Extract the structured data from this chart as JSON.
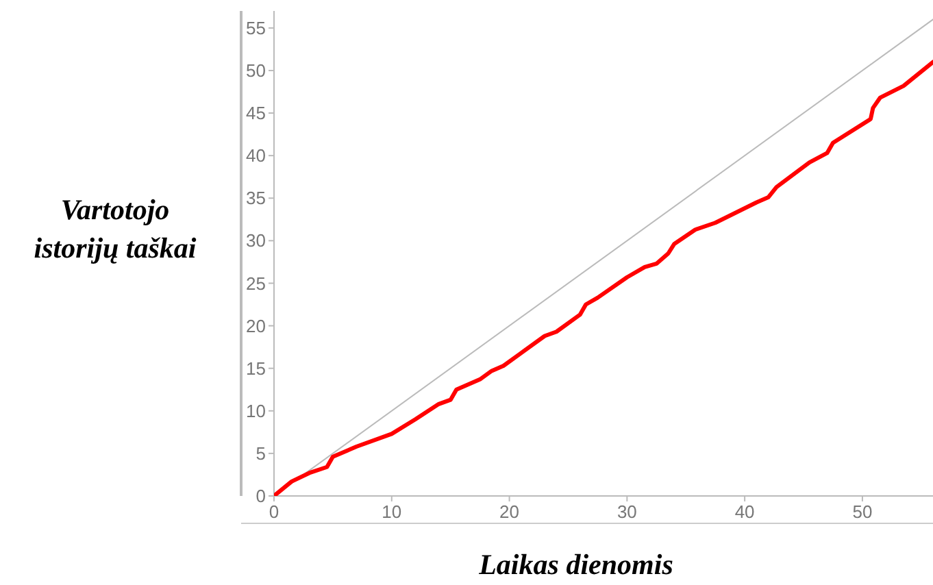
{
  "chart_data": {
    "type": "line",
    "xlabel": "Laikas dienomis",
    "ylabel": "Vartotojo istorijų taškai",
    "xlim": [
      0,
      56
    ],
    "ylim": [
      0,
      57
    ],
    "xticks": [
      0,
      10,
      20,
      30,
      40,
      50
    ],
    "yticks": [
      0,
      5,
      10,
      15,
      20,
      25,
      30,
      35,
      40,
      45,
      50,
      55
    ],
    "grid": false,
    "series": [
      {
        "color": "#bbbbbb",
        "x": [
          0,
          56
        ],
        "values": [
          0,
          56
        ]
      },
      {
        "color": "#ff0000",
        "x": [
          0,
          1.5,
          3,
          4.5,
          5,
          7,
          10,
          12,
          14,
          15,
          15.5,
          17.5,
          18.5,
          19.5,
          21,
          23,
          24,
          26,
          26.5,
          27.5,
          30,
          31.5,
          32.5,
          33.5,
          34,
          35.8,
          37.5,
          41,
          42,
          42.7,
          45.5,
          47,
          47.5,
          50.7,
          50.9,
          51.5,
          53.5,
          56
        ],
        "values": [
          0,
          1.7,
          2.7,
          3.4,
          4.6,
          5.8,
          7.3,
          9,
          10.8,
          11.3,
          12.5,
          13.7,
          14.7,
          15.3,
          16.8,
          18.8,
          19.3,
          21.3,
          22.5,
          23.3,
          25.7,
          26.9,
          27.3,
          28.5,
          29.6,
          31.3,
          32.1,
          34.5,
          35.1,
          36.3,
          39.2,
          40.3,
          41.5,
          44.3,
          45.6,
          46.8,
          48.2,
          51
        ]
      }
    ]
  }
}
